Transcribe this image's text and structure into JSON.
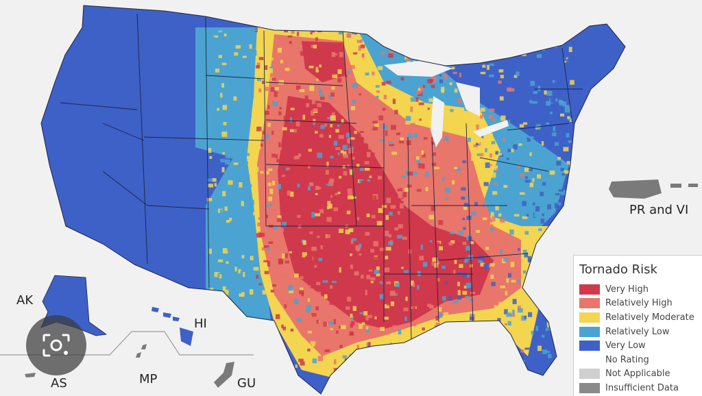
{
  "legend": {
    "title": "Tornado Risk",
    "items": [
      {
        "label": "Very High",
        "color": "#d0384b"
      },
      {
        "label": "Relatively High",
        "color": "#e8766a"
      },
      {
        "label": "Relatively Moderate",
        "color": "#f3d54f"
      },
      {
        "label": "Relatively Low",
        "color": "#4ba3d1"
      },
      {
        "label": "Very Low",
        "color": "#3e61c7"
      },
      {
        "label": "No Rating",
        "color": "#ffffff"
      },
      {
        "label": "Not Applicable",
        "color": "#cfcfcf"
      },
      {
        "label": "Insufficient Data",
        "color": "#8a8a8a"
      }
    ]
  },
  "territories": {
    "pr_vi": "PR and VI",
    "ak": "AK",
    "hi": "HI",
    "as": "AS",
    "mp": "MP",
    "gu": "GU"
  },
  "colors": {
    "background": "#f1f1f1",
    "state_border": "#1b2246",
    "territory_gray": "#7a7a7a"
  },
  "overlay": {
    "icon": "camera-icon"
  }
}
